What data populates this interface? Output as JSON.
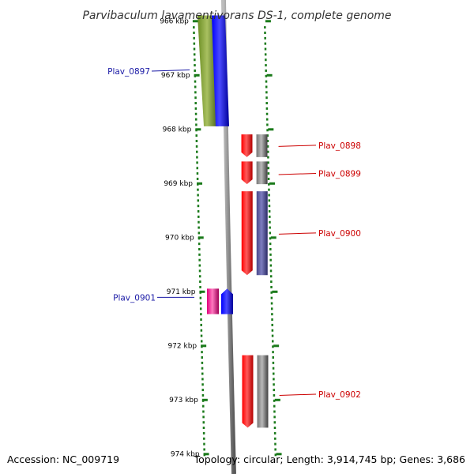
{
  "title": "Parvibaculum lavamentivorans DS-1, complete genome",
  "footer": {
    "accession": "Accession: NC_009719",
    "topology": "Topology: circular; Length: 3,914,745 bp; Genes: 3,686"
  },
  "colors": {
    "forward_label": "#1a1aa6",
    "reverse_label": "#cc0000",
    "tick": "#1a7a1a",
    "backbone": "#8c8c8c",
    "red_cds": "#ff0000",
    "blue_cds": "#0000ff",
    "olive_cds": "#6b8e23",
    "gray_cds": "#707070",
    "navy_cds": "#4a4a8c",
    "magenta_cds": "#e0007a"
  },
  "axis": {
    "unit": "kbp",
    "visible_range_kbp": [
      965.9,
      974.08
    ],
    "ticks": [
      {
        "kbp": 966,
        "label": "966 kbp"
      },
      {
        "kbp": 967,
        "label": "967 kbp"
      },
      {
        "kbp": 968,
        "label": "968 kbp"
      },
      {
        "kbp": 969,
        "label": "969 kbp"
      },
      {
        "kbp": 970,
        "label": "970 kbp"
      },
      {
        "kbp": 971,
        "label": "971 kbp"
      },
      {
        "kbp": 972,
        "label": "972 kbp"
      },
      {
        "kbp": 973,
        "label": "973 kbp"
      },
      {
        "kbp": 974,
        "label": "974 kbp"
      }
    ]
  },
  "features": [
    {
      "track": "forward_cds",
      "start_kbp": 965.9,
      "end_kbp": 967.95,
      "color": "olive_cds"
    },
    {
      "track": "forward_gene",
      "start_kbp": 965.9,
      "end_kbp": 967.95,
      "color": "blue_cds"
    },
    {
      "track": "reverse_cds",
      "start_kbp": 968.1,
      "end_kbp": 968.52,
      "color": "red_cds"
    },
    {
      "track": "reverse_gene",
      "start_kbp": 968.1,
      "end_kbp": 968.52,
      "color": "gray_cds"
    },
    {
      "track": "reverse_cds",
      "start_kbp": 968.6,
      "end_kbp": 969.02,
      "color": "red_cds"
    },
    {
      "track": "reverse_gene",
      "start_kbp": 968.6,
      "end_kbp": 969.02,
      "color": "gray_cds"
    },
    {
      "track": "reverse_cds",
      "start_kbp": 969.15,
      "end_kbp": 970.7,
      "color": "red_cds"
    },
    {
      "track": "reverse_gene",
      "start_kbp": 969.15,
      "end_kbp": 970.7,
      "color": "navy_cds"
    },
    {
      "track": "forward_cds",
      "start_kbp": 970.95,
      "end_kbp": 971.42,
      "color": "magenta_cds"
    },
    {
      "track": "forward_gene",
      "start_kbp": 970.95,
      "end_kbp": 971.42,
      "color": "blue_cds"
    },
    {
      "track": "reverse_cds",
      "start_kbp": 972.18,
      "end_kbp": 973.52,
      "color": "red_cds"
    },
    {
      "track": "reverse_gene",
      "start_kbp": 972.18,
      "end_kbp": 973.52,
      "color": "gray_cds"
    }
  ],
  "labels": [
    {
      "text": "Plav_0897",
      "strand": "forward",
      "kbp": 966.93
    },
    {
      "text": "Plav_0898",
      "strand": "reverse",
      "kbp": 968.3
    },
    {
      "text": "Plav_0899",
      "strand": "reverse",
      "kbp": 968.82
    },
    {
      "text": "Plav_0900",
      "strand": "reverse",
      "kbp": 969.92
    },
    {
      "text": "Plav_0901",
      "strand": "forward",
      "kbp": 971.11
    },
    {
      "text": "Plav_0902",
      "strand": "reverse",
      "kbp": 972.9
    }
  ]
}
